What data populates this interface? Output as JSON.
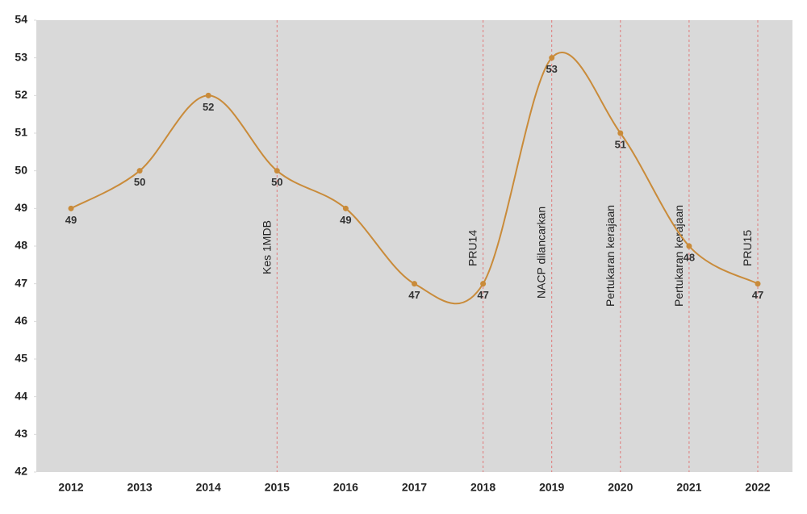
{
  "chart_data": {
    "type": "line",
    "categories": [
      "2012",
      "2013",
      "2014",
      "2015",
      "2016",
      "2017",
      "2018",
      "2019",
      "2020",
      "2021",
      "2022"
    ],
    "series": [
      {
        "color": "#c98b3a",
        "values": [
          49,
          50,
          52,
          50,
          49,
          47,
          47,
          53,
          51,
          48,
          47
        ]
      }
    ],
    "ylim": [
      42,
      54
    ],
    "yticks": [
      42,
      43,
      44,
      45,
      46,
      47,
      48,
      49,
      50,
      51,
      52,
      53,
      54
    ],
    "smooth": true,
    "annotations": [
      {
        "x": "2015",
        "text": "Kes 1MDB"
      },
      {
        "x": "2018",
        "text": "PRU14"
      },
      {
        "x": "2019",
        "text": "NACP dilancarkan"
      },
      {
        "x": "2020",
        "text": "Pertukaran kerajaan"
      },
      {
        "x": "2021",
        "text": "Pertukaran kerajaan"
      },
      {
        "x": "2022",
        "text": "PRU15"
      }
    ],
    "annotation_line_color": "#e07a7a"
  }
}
